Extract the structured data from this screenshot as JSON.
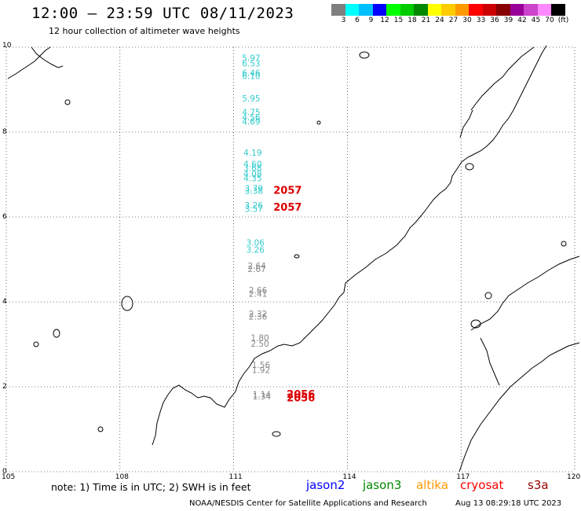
{
  "header": {
    "title": "12:00 – 23:59 UTC 08/11/2023",
    "subtitle": "12 hour collection of altimeter wave heights"
  },
  "colorbar": {
    "colors": [
      "#7f7f7f",
      "#00ffff",
      "#00bfff",
      "#0000ff",
      "#00ff00",
      "#00cc00",
      "#008800",
      "#ffff00",
      "#ffcc00",
      "#ff9900",
      "#ff0000",
      "#cc0000",
      "#880000",
      "#990099",
      "#cc44cc",
      "#ff88ff",
      "#000000"
    ],
    "labels": [
      "3",
      "6",
      "9",
      "12",
      "15",
      "18",
      "21",
      "24",
      "27",
      "30",
      "33",
      "36",
      "39",
      "42",
      "45",
      "70",
      "(ft)"
    ]
  },
  "axes": {
    "x_ticks": [
      "105",
      "108",
      "111",
      "114",
      "117",
      "120"
    ],
    "y_ticks": [
      "0",
      "2",
      "4",
      "6",
      "8",
      "10"
    ],
    "lon_range": [
      105,
      120
    ],
    "lat_range": [
      0,
      10
    ]
  },
  "observations": [
    {
      "lon": 111.22,
      "lat": 9.68,
      "text": "5.97",
      "color": "#33cccc"
    },
    {
      "lon": 111.22,
      "lat": 9.55,
      "text": "6.53",
      "color": "#33cccc"
    },
    {
      "lon": 111.22,
      "lat": 9.32,
      "text": "6.46",
      "color": "#33cccc"
    },
    {
      "lon": 111.22,
      "lat": 9.25,
      "text": "6.10",
      "color": "#33cccc"
    },
    {
      "lon": 111.22,
      "lat": 8.72,
      "text": "5.95",
      "color": "#33cccc"
    },
    {
      "lon": 111.22,
      "lat": 8.4,
      "text": "4.75",
      "color": "#33cccc"
    },
    {
      "lon": 111.22,
      "lat": 8.28,
      "text": "4.56",
      "color": "#33cccc"
    },
    {
      "lon": 111.22,
      "lat": 8.18,
      "text": "4.69",
      "color": "#33cccc"
    },
    {
      "lon": 111.26,
      "lat": 7.44,
      "text": "4.19",
      "color": "#33cccc"
    },
    {
      "lon": 111.26,
      "lat": 7.18,
      "text": "4.60",
      "color": "#33cccc"
    },
    {
      "lon": 111.26,
      "lat": 7.08,
      "text": "3.68",
      "color": "#33cccc"
    },
    {
      "lon": 111.26,
      "lat": 6.94,
      "text": "4.08",
      "color": "#33cccc"
    },
    {
      "lon": 111.26,
      "lat": 6.84,
      "text": "4.35",
      "color": "#33cccc"
    },
    {
      "lon": 111.29,
      "lat": 6.6,
      "text": "3.79",
      "color": "#33cccc"
    },
    {
      "lon": 111.29,
      "lat": 6.55,
      "text": "3.38",
      "color": "#33cccc"
    },
    {
      "lon": 111.29,
      "lat": 6.2,
      "text": "3.26",
      "color": "#33cccc"
    },
    {
      "lon": 111.29,
      "lat": 6.12,
      "text": "3.57",
      "color": "#33cccc"
    },
    {
      "lon": 111.33,
      "lat": 5.32,
      "text": "3.06",
      "color": "#33cccc"
    },
    {
      "lon": 111.33,
      "lat": 5.16,
      "text": "3.26",
      "color": "#33cccc"
    },
    {
      "lon": 111.37,
      "lat": 4.78,
      "text": "2.64",
      "color": "#888888"
    },
    {
      "lon": 111.37,
      "lat": 4.7,
      "text": "2.67",
      "color": "#888888"
    },
    {
      "lon": 111.4,
      "lat": 4.2,
      "text": "2.66",
      "color": "#888888"
    },
    {
      "lon": 111.4,
      "lat": 4.12,
      "text": "2.41",
      "color": "#888888"
    },
    {
      "lon": 111.4,
      "lat": 3.65,
      "text": "2.32",
      "color": "#888888"
    },
    {
      "lon": 111.4,
      "lat": 3.58,
      "text": "2.36",
      "color": "#888888"
    },
    {
      "lon": 111.45,
      "lat": 3.08,
      "text": "1.80",
      "color": "#888888"
    },
    {
      "lon": 111.45,
      "lat": 2.94,
      "text": "2.50",
      "color": "#888888"
    },
    {
      "lon": 111.48,
      "lat": 2.44,
      "text": "1.56",
      "color": "#888888"
    },
    {
      "lon": 111.48,
      "lat": 2.32,
      "text": "1.92",
      "color": "#888888"
    },
    {
      "lon": 111.5,
      "lat": 1.75,
      "text": "1.14",
      "color": "#888888"
    },
    {
      "lon": 111.5,
      "lat": 1.7,
      "text": "1.34",
      "color": "#888888"
    }
  ],
  "times": [
    {
      "lon": 112.05,
      "lat": 6.55,
      "text": "2057",
      "color": "#dd0000"
    },
    {
      "lon": 112.05,
      "lat": 6.15,
      "text": "2057",
      "color": "#dd0000"
    },
    {
      "lon": 112.4,
      "lat": 1.74,
      "text": "2056",
      "color": "#dd0000"
    },
    {
      "lon": 112.4,
      "lat": 1.66,
      "text": "2056",
      "color": "#dd0000"
    }
  ],
  "note": "note:  1) Time is in UTC; 2) SWH is in feet",
  "legend": [
    {
      "label": "jason2",
      "color": "#0000ff"
    },
    {
      "label": "jason3",
      "color": "#008800"
    },
    {
      "label": "altika",
      "color": "#ff9900"
    },
    {
      "label": "cryosat",
      "color": "#ff0000"
    },
    {
      "label": "s3a",
      "color": "#990000"
    }
  ],
  "footer": {
    "source": "NOAA/NESDIS Center for Satellite Applications and Research",
    "timestamp": "Aug 13 08:29:18 UTC 2023"
  }
}
